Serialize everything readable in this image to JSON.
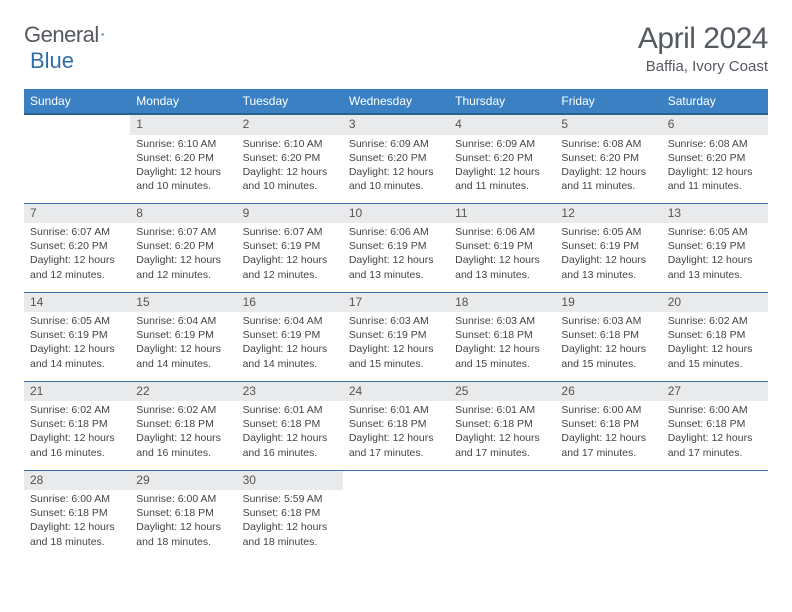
{
  "brand": {
    "part1": "General",
    "part2": "Blue"
  },
  "title": "April 2024",
  "location": "Baffia, Ivory Coast",
  "colors": {
    "header_bg": "#3a80c3",
    "header_border": "#2b5f8f",
    "row_border": "#3a6ea5",
    "daynum_bg": "#e8eaec",
    "text": "#555960"
  },
  "weekdays": [
    "Sunday",
    "Monday",
    "Tuesday",
    "Wednesday",
    "Thursday",
    "Friday",
    "Saturday"
  ],
  "weeks": [
    [
      {
        "day": "",
        "lines": []
      },
      {
        "day": "1",
        "lines": [
          "Sunrise: 6:10 AM",
          "Sunset: 6:20 PM",
          "Daylight: 12 hours",
          "and 10 minutes."
        ]
      },
      {
        "day": "2",
        "lines": [
          "Sunrise: 6:10 AM",
          "Sunset: 6:20 PM",
          "Daylight: 12 hours",
          "and 10 minutes."
        ]
      },
      {
        "day": "3",
        "lines": [
          "Sunrise: 6:09 AM",
          "Sunset: 6:20 PM",
          "Daylight: 12 hours",
          "and 10 minutes."
        ]
      },
      {
        "day": "4",
        "lines": [
          "Sunrise: 6:09 AM",
          "Sunset: 6:20 PM",
          "Daylight: 12 hours",
          "and 11 minutes."
        ]
      },
      {
        "day": "5",
        "lines": [
          "Sunrise: 6:08 AM",
          "Sunset: 6:20 PM",
          "Daylight: 12 hours",
          "and 11 minutes."
        ]
      },
      {
        "day": "6",
        "lines": [
          "Sunrise: 6:08 AM",
          "Sunset: 6:20 PM",
          "Daylight: 12 hours",
          "and 11 minutes."
        ]
      }
    ],
    [
      {
        "day": "7",
        "lines": [
          "Sunrise: 6:07 AM",
          "Sunset: 6:20 PM",
          "Daylight: 12 hours",
          "and 12 minutes."
        ]
      },
      {
        "day": "8",
        "lines": [
          "Sunrise: 6:07 AM",
          "Sunset: 6:20 PM",
          "Daylight: 12 hours",
          "and 12 minutes."
        ]
      },
      {
        "day": "9",
        "lines": [
          "Sunrise: 6:07 AM",
          "Sunset: 6:19 PM",
          "Daylight: 12 hours",
          "and 12 minutes."
        ]
      },
      {
        "day": "10",
        "lines": [
          "Sunrise: 6:06 AM",
          "Sunset: 6:19 PM",
          "Daylight: 12 hours",
          "and 13 minutes."
        ]
      },
      {
        "day": "11",
        "lines": [
          "Sunrise: 6:06 AM",
          "Sunset: 6:19 PM",
          "Daylight: 12 hours",
          "and 13 minutes."
        ]
      },
      {
        "day": "12",
        "lines": [
          "Sunrise: 6:05 AM",
          "Sunset: 6:19 PM",
          "Daylight: 12 hours",
          "and 13 minutes."
        ]
      },
      {
        "day": "13",
        "lines": [
          "Sunrise: 6:05 AM",
          "Sunset: 6:19 PM",
          "Daylight: 12 hours",
          "and 13 minutes."
        ]
      }
    ],
    [
      {
        "day": "14",
        "lines": [
          "Sunrise: 6:05 AM",
          "Sunset: 6:19 PM",
          "Daylight: 12 hours",
          "and 14 minutes."
        ]
      },
      {
        "day": "15",
        "lines": [
          "Sunrise: 6:04 AM",
          "Sunset: 6:19 PM",
          "Daylight: 12 hours",
          "and 14 minutes."
        ]
      },
      {
        "day": "16",
        "lines": [
          "Sunrise: 6:04 AM",
          "Sunset: 6:19 PM",
          "Daylight: 12 hours",
          "and 14 minutes."
        ]
      },
      {
        "day": "17",
        "lines": [
          "Sunrise: 6:03 AM",
          "Sunset: 6:19 PM",
          "Daylight: 12 hours",
          "and 15 minutes."
        ]
      },
      {
        "day": "18",
        "lines": [
          "Sunrise: 6:03 AM",
          "Sunset: 6:18 PM",
          "Daylight: 12 hours",
          "and 15 minutes."
        ]
      },
      {
        "day": "19",
        "lines": [
          "Sunrise: 6:03 AM",
          "Sunset: 6:18 PM",
          "Daylight: 12 hours",
          "and 15 minutes."
        ]
      },
      {
        "day": "20",
        "lines": [
          "Sunrise: 6:02 AM",
          "Sunset: 6:18 PM",
          "Daylight: 12 hours",
          "and 15 minutes."
        ]
      }
    ],
    [
      {
        "day": "21",
        "lines": [
          "Sunrise: 6:02 AM",
          "Sunset: 6:18 PM",
          "Daylight: 12 hours",
          "and 16 minutes."
        ]
      },
      {
        "day": "22",
        "lines": [
          "Sunrise: 6:02 AM",
          "Sunset: 6:18 PM",
          "Daylight: 12 hours",
          "and 16 minutes."
        ]
      },
      {
        "day": "23",
        "lines": [
          "Sunrise: 6:01 AM",
          "Sunset: 6:18 PM",
          "Daylight: 12 hours",
          "and 16 minutes."
        ]
      },
      {
        "day": "24",
        "lines": [
          "Sunrise: 6:01 AM",
          "Sunset: 6:18 PM",
          "Daylight: 12 hours",
          "and 17 minutes."
        ]
      },
      {
        "day": "25",
        "lines": [
          "Sunrise: 6:01 AM",
          "Sunset: 6:18 PM",
          "Daylight: 12 hours",
          "and 17 minutes."
        ]
      },
      {
        "day": "26",
        "lines": [
          "Sunrise: 6:00 AM",
          "Sunset: 6:18 PM",
          "Daylight: 12 hours",
          "and 17 minutes."
        ]
      },
      {
        "day": "27",
        "lines": [
          "Sunrise: 6:00 AM",
          "Sunset: 6:18 PM",
          "Daylight: 12 hours",
          "and 17 minutes."
        ]
      }
    ],
    [
      {
        "day": "28",
        "lines": [
          "Sunrise: 6:00 AM",
          "Sunset: 6:18 PM",
          "Daylight: 12 hours",
          "and 18 minutes."
        ]
      },
      {
        "day": "29",
        "lines": [
          "Sunrise: 6:00 AM",
          "Sunset: 6:18 PM",
          "Daylight: 12 hours",
          "and 18 minutes."
        ]
      },
      {
        "day": "30",
        "lines": [
          "Sunrise: 5:59 AM",
          "Sunset: 6:18 PM",
          "Daylight: 12 hours",
          "and 18 minutes."
        ]
      },
      {
        "day": "",
        "lines": []
      },
      {
        "day": "",
        "lines": []
      },
      {
        "day": "",
        "lines": []
      },
      {
        "day": "",
        "lines": []
      }
    ]
  ]
}
